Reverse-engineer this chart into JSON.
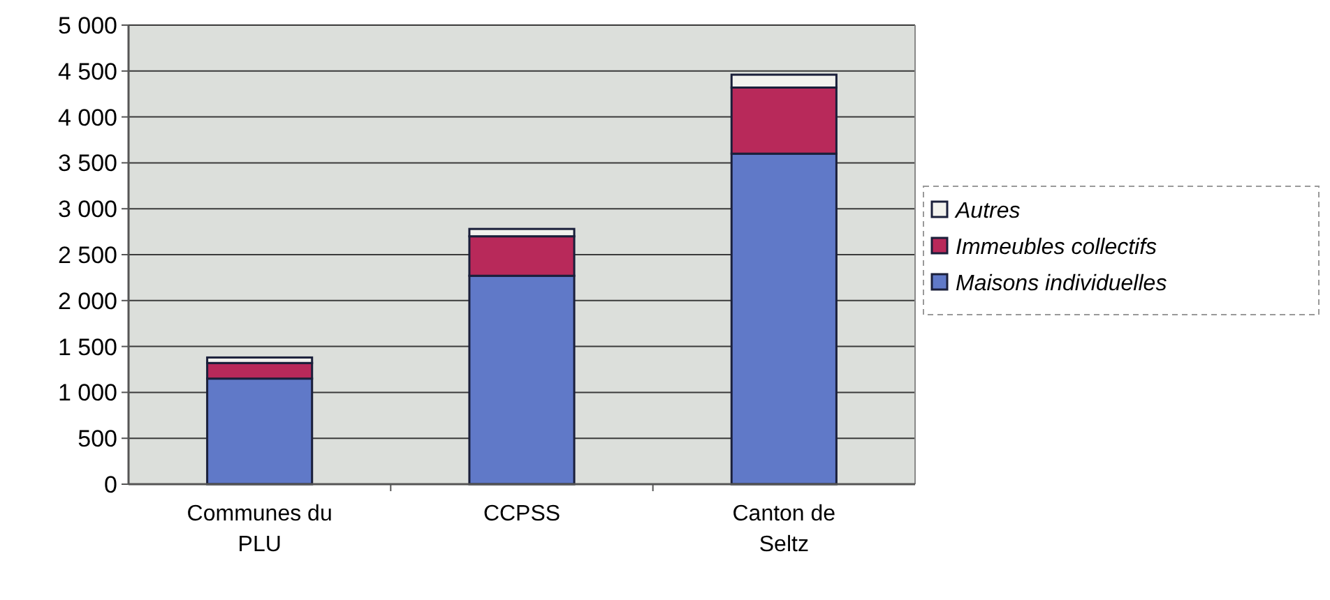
{
  "chart_data": {
    "type": "bar",
    "stacked": true,
    "categories": [
      "Communes du PLU",
      "CCPSS",
      "Canton de Seltz"
    ],
    "series": [
      {
        "name": "Maisons individuelles",
        "color": "#6079c8",
        "values": [
          1150,
          2270,
          3600
        ]
      },
      {
        "name": "Immeubles collectifs",
        "color": "#b8295a",
        "values": [
          170,
          430,
          720
        ]
      },
      {
        "name": "Autres",
        "color": "#f2f2ee",
        "values": [
          60,
          80,
          140
        ]
      }
    ],
    "ylim": [
      0,
      5000
    ],
    "yticks": [
      0,
      500,
      {
        "value": 1000,
        "label": "1 000"
      },
      {
        "value": 1500,
        "label": "1 500"
      },
      {
        "value": 2000,
        "label": "2 000"
      },
      {
        "value": 2500,
        "label": "2 500"
      },
      {
        "value": 3000,
        "label": "3 000"
      },
      {
        "value": 3500,
        "label": "3 500"
      },
      {
        "value": 4000,
        "label": "4 000"
      },
      {
        "value": 4500,
        "label": "4 500"
      },
      {
        "value": 5000,
        "label": "5 000"
      }
    ],
    "grid": "y",
    "legend": "right"
  }
}
